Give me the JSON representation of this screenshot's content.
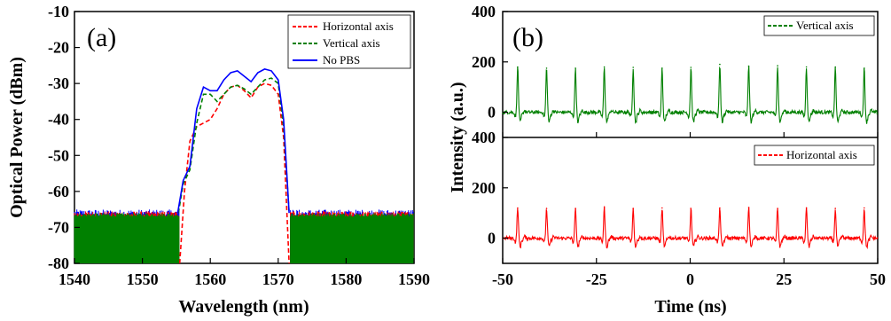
{
  "chart_data": [
    {
      "type": "line",
      "panel_label": "(a)",
      "xlabel": "Wavelength (nm)",
      "ylabel": "Optical Power (dBm)",
      "xlim": [
        1540,
        1590
      ],
      "ylim": [
        -80,
        -10
      ],
      "xticks": [
        "1540",
        "1550",
        "1560",
        "1570",
        "1580",
        "1590"
      ],
      "yticks": [
        "-10",
        "-20",
        "-30",
        "-40",
        "-50",
        "-60",
        "-70",
        "-80"
      ],
      "legend_position": "top-right",
      "noise_floor_dBm": -67,
      "series": [
        {
          "name": "Horizontal axis",
          "color": "#ff0000",
          "style": "dashed",
          "x": [
            1555.5,
            1556.2,
            1557.0,
            1558.0,
            1559.0,
            1560.0,
            1561.0,
            1562.0,
            1563.0,
            1564.0,
            1565.0,
            1566.0,
            1567.0,
            1568.0,
            1569.0,
            1570.0,
            1570.8,
            1571.6
          ],
          "y": [
            -80,
            -60,
            -46,
            -42,
            -41,
            -40,
            -37,
            -33,
            -31,
            -30.5,
            -32,
            -34,
            -31,
            -30,
            -30.5,
            -33,
            -45,
            -80
          ]
        },
        {
          "name": "Vertical axis",
          "color": "#008000",
          "style": "dashed",
          "x": [
            1555.3,
            1556.0,
            1557.0,
            1558.0,
            1559.0,
            1560.0,
            1561.0,
            1562.0,
            1563.0,
            1564.0,
            1565.0,
            1566.0,
            1567.0,
            1568.0,
            1569.0,
            1570.0,
            1570.8,
            1571.6
          ],
          "y": [
            -66,
            -58,
            -54,
            -41,
            -33,
            -33,
            -35,
            -33,
            -31,
            -30.5,
            -31.5,
            -33,
            -31,
            -29,
            -28.5,
            -30,
            -42,
            -66
          ]
        },
        {
          "name": "No PBS",
          "color": "#0000ff",
          "style": "solid",
          "x": [
            1555.2,
            1556.0,
            1557.0,
            1558.0,
            1559.0,
            1560.0,
            1561.0,
            1562.0,
            1563.0,
            1564.0,
            1565.0,
            1566.0,
            1567.0,
            1568.0,
            1569.0,
            1570.0,
            1570.8,
            1571.6
          ],
          "y": [
            -66,
            -57,
            -53,
            -37,
            -31,
            -32,
            -32,
            -29,
            -27,
            -26.5,
            -28,
            -29.5,
            -27,
            -26,
            -26.5,
            -29,
            -40,
            -66
          ]
        }
      ]
    },
    {
      "type": "line",
      "panel_label": "(b)",
      "xlabel": "Time (ns)",
      "ylabel": "Intensity (a.u.)",
      "xlim": [
        -50,
        50
      ],
      "xticks": [
        "-50",
        "-25",
        "0",
        "25",
        "50"
      ],
      "pulse_period_ns": 7.7,
      "subplots": [
        {
          "ylim": [
            -100,
            400
          ],
          "yticks": [
            "400",
            "200",
            "0"
          ],
          "legend_position": "top-right",
          "series": [
            {
              "name": "Vertical  axis",
              "color": "#008000",
              "style": "solid",
              "pulse_times_ns": [
                -46,
                -38.3,
                -30.6,
                -22.9,
                -15.2,
                -7.5,
                0.2,
                7.9,
                15.6,
                23.3,
                31.0,
                38.7,
                46.4
              ],
              "peak_values": [
                180,
                175,
                175,
                180,
                178,
                175,
                178,
                190,
                183,
                185,
                180,
                180,
                175
              ],
              "trough_value": -40,
              "baseline": 0
            }
          ]
        },
        {
          "ylim": [
            -100,
            400
          ],
          "yticks": [
            "400",
            "200",
            "0"
          ],
          "legend_position": "top-right",
          "series": [
            {
              "name": "Horizontal axis",
              "color": "#ff0000",
              "style": "solid",
              "pulse_times_ns": [
                -46,
                -38.3,
                -30.6,
                -22.9,
                -15.2,
                -7.5,
                0.2,
                7.9,
                15.6,
                23.3,
                31.0,
                38.7,
                46.4
              ],
              "peak_values": [
                120,
                118,
                118,
                122,
                118,
                120,
                118,
                120,
                122,
                118,
                120,
                118,
                120
              ],
              "trough_value": -35,
              "baseline": 0
            }
          ]
        }
      ]
    }
  ]
}
